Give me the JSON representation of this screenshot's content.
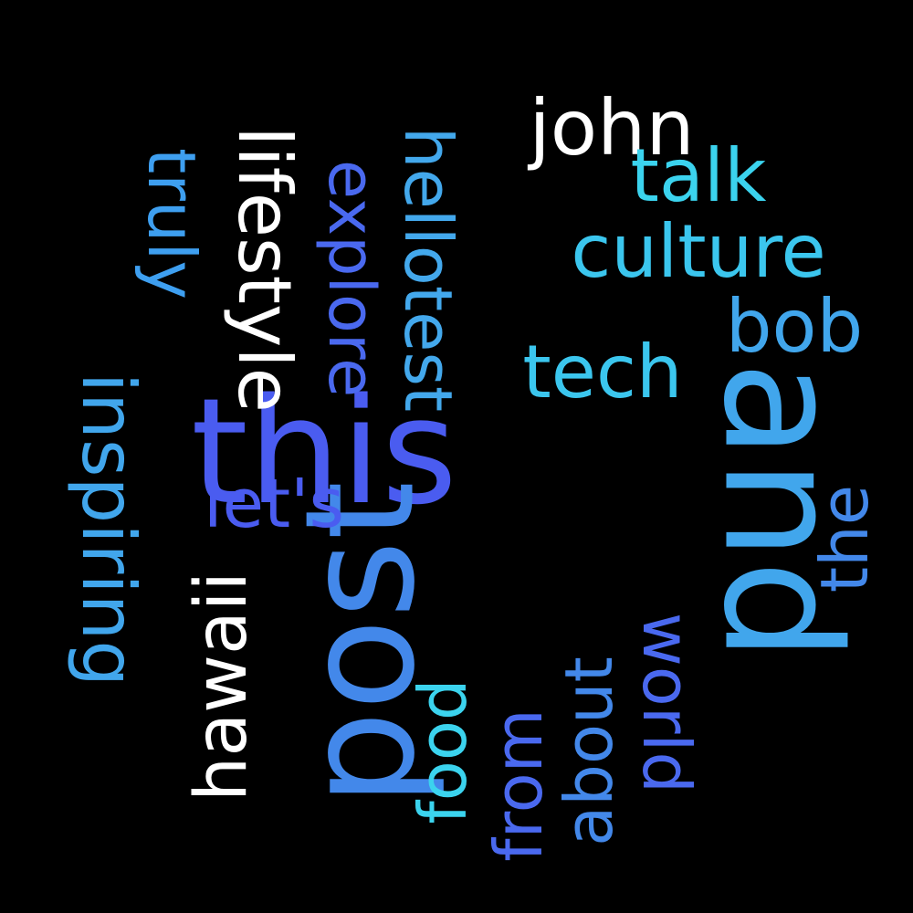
{
  "words": {
    "this": {
      "text": "this",
      "color": "#4a5cf0"
    },
    "and": {
      "text": "and",
      "color": "#41a6ec"
    },
    "post": {
      "text": "post",
      "color": "#4388ea"
    },
    "john": {
      "text": "john",
      "color": "#ffffff"
    },
    "talk": {
      "text": "talk",
      "color": "#3bd3ee"
    },
    "culture": {
      "text": "culture",
      "color": "#3bc6ee"
    },
    "bob": {
      "text": "bob",
      "color": "#41a6ec"
    },
    "tech": {
      "text": "tech",
      "color": "#3bc6ee"
    },
    "lifestyle": {
      "text": "lifestyle",
      "color": "#ffffff"
    },
    "truly": {
      "text": "truly",
      "color": "#3e9ff0"
    },
    "explore": {
      "text": "explore",
      "color": "#4a69ef"
    },
    "hellotest": {
      "text": "hellotest",
      "color": "#43a8ec"
    },
    "inspiring": {
      "text": "inspiring",
      "color": "#41a6ec"
    },
    "lets": {
      "text": "let's",
      "color": "#4a5cf0"
    },
    "hawaii": {
      "text": "hawaii",
      "color": "#ffffff"
    },
    "the": {
      "text": "the",
      "color": "#4388ea"
    },
    "food": {
      "text": "food",
      "color": "#3bd3ee"
    },
    "from": {
      "text": "from",
      "color": "#4a69ef"
    },
    "about": {
      "text": "about",
      "color": "#4388ea"
    },
    "world": {
      "text": "world",
      "color": "#4a69ef"
    }
  },
  "background": "#000000"
}
